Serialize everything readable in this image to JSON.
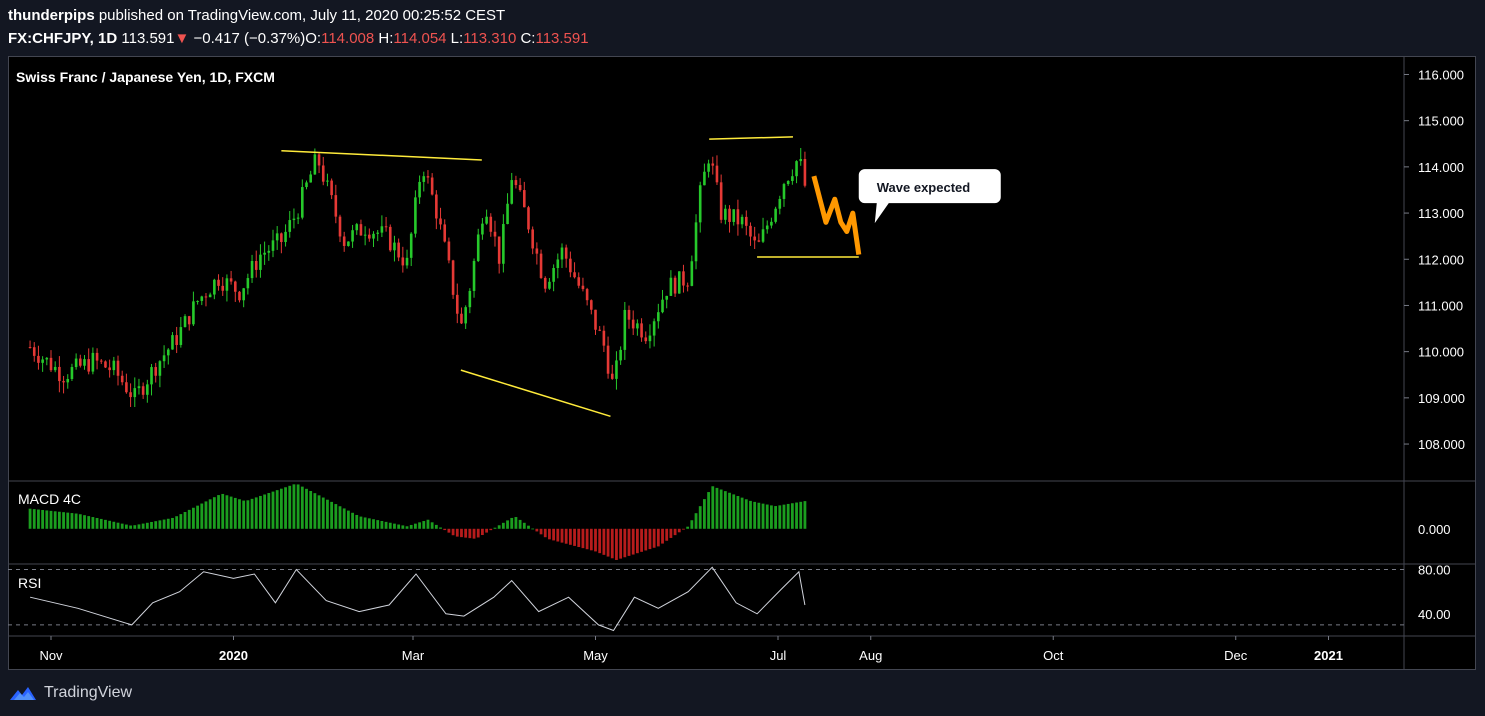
{
  "header": {
    "author": "thunderpips",
    "published_text": "published on TradingView.com, July 11, 2020 00:25:52 CEST",
    "symbol": "FX:CHFJPY, 1D",
    "last": "113.591",
    "change": "−0.417 (−0.37%)",
    "o_label": "O:",
    "o_value": "114.008",
    "h_label": "H:",
    "h_value": "114.054",
    "l_label": "L:",
    "l_value": "113.310",
    "c_label": "C:",
    "c_value": "113.591"
  },
  "footer": {
    "brand": "TradingView"
  },
  "colors": {
    "background": "#000000",
    "page_background": "#131722",
    "up": "#26c92b",
    "down": "#e53935",
    "trendline": "#ffeb3b",
    "projection": "#ff9800",
    "rsi_line": "#d1d4dc",
    "macd_up": "#1b9e1f",
    "macd_down": "#b71c1c",
    "text": "#ffffff"
  },
  "chart_data": {
    "type": "candlestick",
    "title": "Swiss Franc / Japanese Yen, 1D, FXCM",
    "price_axis": {
      "ticks": [
        "116.000",
        "115.000",
        "114.000",
        "113.000",
        "112.000",
        "111.000",
        "110.000",
        "109.000",
        "108.000"
      ],
      "ylim": [
        107.2,
        116.4
      ]
    },
    "time_axis": {
      "ticks": [
        "Nov",
        "2020",
        "Mar",
        "May",
        "Jul",
        "Aug",
        "Oct",
        "Dec",
        "2021"
      ]
    },
    "close_series": [
      {
        "date": "2019-10-25",
        "value": 110.1
      },
      {
        "date": "2019-11-05",
        "value": 109.5
      },
      {
        "date": "2019-11-15",
        "value": 109.8
      },
      {
        "date": "2019-11-22",
        "value": 109.6
      },
      {
        "date": "2019-11-29",
        "value": 109.0
      },
      {
        "date": "2019-12-06",
        "value": 109.7
      },
      {
        "date": "2019-12-13",
        "value": 110.3
      },
      {
        "date": "2019-12-20",
        "value": 111.1
      },
      {
        "date": "2019-12-27",
        "value": 111.6
      },
      {
        "date": "2020-01-03",
        "value": 111.3
      },
      {
        "date": "2020-01-10",
        "value": 112.1
      },
      {
        "date": "2020-01-17",
        "value": 112.4
      },
      {
        "date": "2020-01-22",
        "value": 113.0
      },
      {
        "date": "2020-01-29",
        "value": 114.2
      },
      {
        "date": "2020-02-03",
        "value": 113.2
      },
      {
        "date": "2020-02-07",
        "value": 112.4
      },
      {
        "date": "2020-02-14",
        "value": 112.7
      },
      {
        "date": "2020-02-21",
        "value": 112.5
      },
      {
        "date": "2020-02-28",
        "value": 111.9
      },
      {
        "date": "2020-03-04",
        "value": 114.1
      },
      {
        "date": "2020-03-09",
        "value": 113.0
      },
      {
        "date": "2020-03-13",
        "value": 111.8
      },
      {
        "date": "2020-03-17",
        "value": 110.5
      },
      {
        "date": "2020-03-20",
        "value": 111.4
      },
      {
        "date": "2020-03-25",
        "value": 113.3
      },
      {
        "date": "2020-03-30",
        "value": 112.0
      },
      {
        "date": "2020-04-03",
        "value": 113.8
      },
      {
        "date": "2020-04-08",
        "value": 112.9
      },
      {
        "date": "2020-04-14",
        "value": 111.5
      },
      {
        "date": "2020-04-20",
        "value": 112.2
      },
      {
        "date": "2020-04-27",
        "value": 111.2
      },
      {
        "date": "2020-05-04",
        "value": 110.1
      },
      {
        "date": "2020-05-07",
        "value": 109.2
      },
      {
        "date": "2020-05-11",
        "value": 110.8
      },
      {
        "date": "2020-05-18",
        "value": 110.4
      },
      {
        "date": "2020-05-25",
        "value": 111.4
      },
      {
        "date": "2020-06-01",
        "value": 111.6
      },
      {
        "date": "2020-06-05",
        "value": 113.4
      },
      {
        "date": "2020-06-08",
        "value": 114.3
      },
      {
        "date": "2020-06-12",
        "value": 113.0
      },
      {
        "date": "2020-06-19",
        "value": 112.8
      },
      {
        "date": "2020-06-24",
        "value": 112.2
      },
      {
        "date": "2020-06-29",
        "value": 113.0
      },
      {
        "date": "2020-07-03",
        "value": 113.7
      },
      {
        "date": "2020-07-08",
        "value": 114.2
      },
      {
        "date": "2020-07-10",
        "value": 113.591
      }
    ],
    "trendlines": [
      {
        "start": {
          "date": "2020-01-17",
          "value": 114.35
        },
        "end": {
          "date": "2020-03-24",
          "value": 114.15
        }
      },
      {
        "start": {
          "date": "2020-03-17",
          "value": 109.6
        },
        "end": {
          "date": "2020-05-06",
          "value": 108.6
        }
      },
      {
        "start": {
          "date": "2020-06-08",
          "value": 114.6
        },
        "end": {
          "date": "2020-07-06",
          "value": 114.65
        }
      },
      {
        "start": {
          "date": "2020-06-24",
          "value": 112.05
        },
        "end": {
          "date": "2020-07-28",
          "value": 112.05
        }
      }
    ],
    "projection": [
      {
        "date": "2020-07-13",
        "value": 113.8
      },
      {
        "date": "2020-07-15",
        "value": 113.3
      },
      {
        "date": "2020-07-17",
        "value": 112.8
      },
      {
        "date": "2020-07-20",
        "value": 113.3
      },
      {
        "date": "2020-07-22",
        "value": 112.8
      },
      {
        "date": "2020-07-24",
        "value": 112.6
      },
      {
        "date": "2020-07-26",
        "value": 113.0
      },
      {
        "date": "2020-07-28",
        "value": 112.1
      }
    ],
    "annotation": {
      "text": "Wave expected",
      "date": "2020-07-30",
      "value": 113.95
    },
    "macd": {
      "label": "MACD 4C",
      "ticks": [
        "0.000"
      ],
      "ylim": [
        -0.7,
        0.95
      ],
      "series": [
        {
          "date": "2019-10-25",
          "value": 0.4
        },
        {
          "date": "2019-11-10",
          "value": 0.3
        },
        {
          "date": "2019-11-28",
          "value": 0.06
        },
        {
          "date": "2019-12-12",
          "value": 0.22
        },
        {
          "date": "2019-12-28",
          "value": 0.7
        },
        {
          "date": "2020-01-05",
          "value": 0.55
        },
        {
          "date": "2020-01-22",
          "value": 0.9
        },
        {
          "date": "2020-02-12",
          "value": 0.25
        },
        {
          "date": "2020-02-28",
          "value": 0.05
        },
        {
          "date": "2020-03-06",
          "value": 0.18
        },
        {
          "date": "2020-03-15",
          "value": -0.15
        },
        {
          "date": "2020-03-22",
          "value": -0.2
        },
        {
          "date": "2020-04-04",
          "value": 0.25
        },
        {
          "date": "2020-04-15",
          "value": -0.2
        },
        {
          "date": "2020-05-01",
          "value": -0.45
        },
        {
          "date": "2020-05-08",
          "value": -0.62
        },
        {
          "date": "2020-05-22",
          "value": -0.35
        },
        {
          "date": "2020-06-01",
          "value": 0.05
        },
        {
          "date": "2020-06-09",
          "value": 0.85
        },
        {
          "date": "2020-06-22",
          "value": 0.55
        },
        {
          "date": "2020-06-30",
          "value": 0.45
        },
        {
          "date": "2020-07-10",
          "value": 0.55
        }
      ]
    },
    "rsi": {
      "label": "RSI",
      "ticks": [
        "80.00",
        "40.00"
      ],
      "ylim": [
        20,
        85
      ],
      "bands": [
        80,
        30
      ],
      "series": [
        {
          "date": "2019-10-25",
          "value": 55
        },
        {
          "date": "2019-11-10",
          "value": 45
        },
        {
          "date": "2019-11-28",
          "value": 30
        },
        {
          "date": "2019-12-05",
          "value": 50
        },
        {
          "date": "2019-12-14",
          "value": 60
        },
        {
          "date": "2019-12-22",
          "value": 78
        },
        {
          "date": "2020-01-01",
          "value": 72
        },
        {
          "date": "2020-01-08",
          "value": 76
        },
        {
          "date": "2020-01-15",
          "value": 50
        },
        {
          "date": "2020-01-22",
          "value": 80
        },
        {
          "date": "2020-02-01",
          "value": 52
        },
        {
          "date": "2020-02-12",
          "value": 42
        },
        {
          "date": "2020-02-22",
          "value": 48
        },
        {
          "date": "2020-03-02",
          "value": 76
        },
        {
          "date": "2020-03-12",
          "value": 40
        },
        {
          "date": "2020-03-18",
          "value": 38
        },
        {
          "date": "2020-03-28",
          "value": 55
        },
        {
          "date": "2020-04-03",
          "value": 70
        },
        {
          "date": "2020-04-12",
          "value": 42
        },
        {
          "date": "2020-04-22",
          "value": 55
        },
        {
          "date": "2020-05-02",
          "value": 30
        },
        {
          "date": "2020-05-07",
          "value": 25
        },
        {
          "date": "2020-05-14",
          "value": 55
        },
        {
          "date": "2020-05-22",
          "value": 45
        },
        {
          "date": "2020-06-01",
          "value": 60
        },
        {
          "date": "2020-06-09",
          "value": 82
        },
        {
          "date": "2020-06-17",
          "value": 50
        },
        {
          "date": "2020-06-24",
          "value": 40
        },
        {
          "date": "2020-07-02",
          "value": 62
        },
        {
          "date": "2020-07-08",
          "value": 78
        },
        {
          "date": "2020-07-10",
          "value": 48
        }
      ]
    }
  }
}
